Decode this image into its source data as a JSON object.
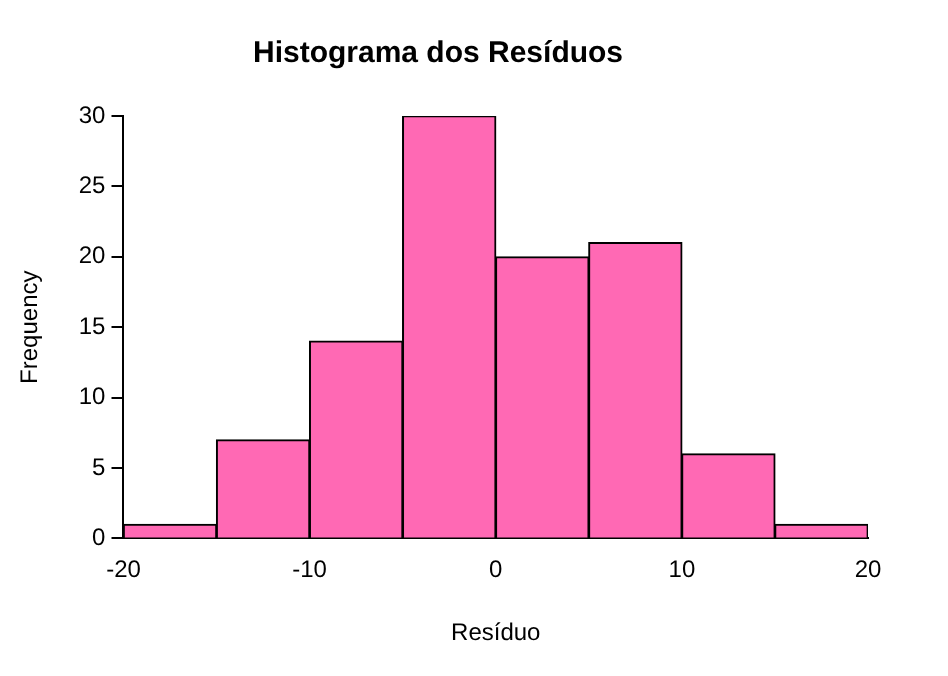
{
  "chart_data": {
    "type": "histogram",
    "title": "Histograma dos Resíduos",
    "xlabel": "Resíduo",
    "ylabel": "Frequency",
    "bins": [
      -20,
      -15,
      -10,
      -5,
      0,
      5,
      10,
      15,
      20
    ],
    "values": [
      1,
      7,
      14,
      30,
      20,
      21,
      6,
      1
    ],
    "color": "#ff69b4",
    "xlim": [
      -20,
      20
    ],
    "xticks": [
      -20,
      -10,
      0,
      10,
      20
    ],
    "ylim": [
      0,
      30
    ],
    "yticks": [
      0,
      5,
      10,
      15,
      20,
      25,
      30
    ],
    "grid": false,
    "legend": false
  }
}
